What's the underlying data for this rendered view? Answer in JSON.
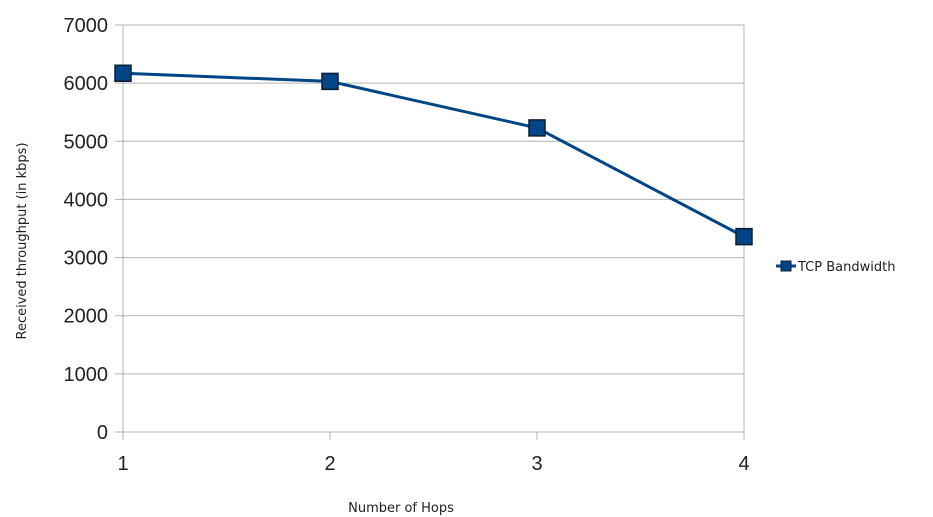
{
  "chart_data": {
    "type": "line",
    "x": [
      1,
      2,
      3,
      4
    ],
    "categories": [
      "1",
      "2",
      "3",
      "4"
    ],
    "series": [
      {
        "name": "TCP Bandwidth",
        "values": [
          6170,
          6030,
          5230,
          3360
        ],
        "color": "#004586",
        "marker": "square"
      }
    ],
    "xlabel": "Number of Hops",
    "ylabel": "Received throughput (in kbps)",
    "ylim": [
      0,
      7000
    ],
    "yticks": [
      "0",
      "1000",
      "2000",
      "3000",
      "4000",
      "5000",
      "6000",
      "7000"
    ],
    "grid": true,
    "legend": "right",
    "colors": {
      "grid": "#b3b3b3",
      "axis": "#b3b3b3",
      "marker_fill": "#004586",
      "marker_stroke": "#0d1f33"
    }
  }
}
